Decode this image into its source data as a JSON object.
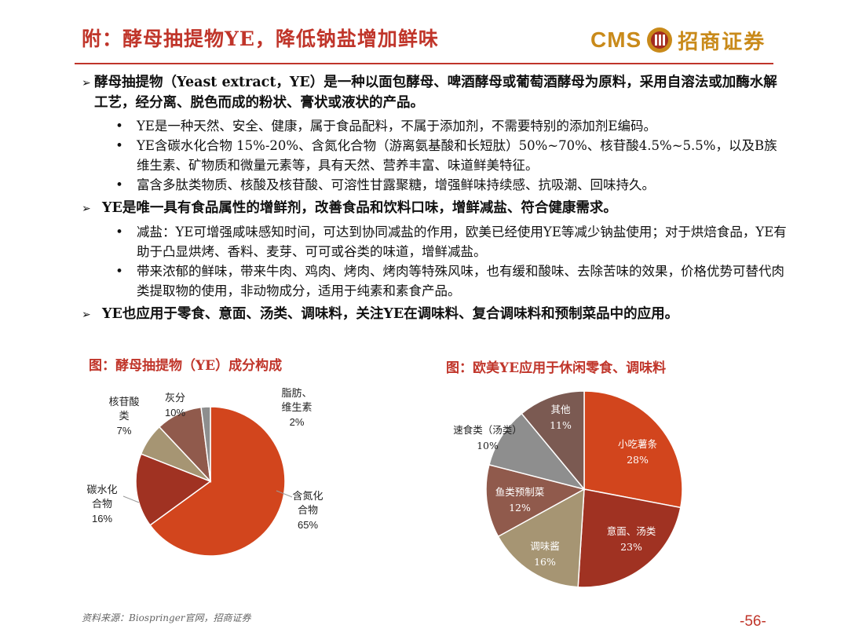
{
  "header": {
    "title": "附：酵母抽提物YE，降低钠盐增加鲜味",
    "logo_text": "CMS",
    "logo_cn": "招商证券"
  },
  "sections": [
    {
      "text": "酵母抽提物（Yeast extract，YE）是一种以面包酵母、啤酒酵母或葡萄酒酵母为原料，采用自溶法或加酶水解工艺，经分离、脱色而成的粉状、膏状或液状的产品。",
      "bullets": [
        "YE是一种天然、安全、健康，属于食品配料，不属于添加剂，不需要特别的添加剂E编码。",
        "YE含碳水化合物 15%-20%、含氮化合物（游离氨基酸和长短肽）50%~70%、核苷酸4.5%~5.5%，以及B族维生素、矿物质和微量元素等，具有天然、营养丰富、味道鲜美特征。",
        "富含多肽类物质、核酸及核苷酸、可溶性甘露聚糖，增强鲜味持续感、抗吸潮、回味持久。"
      ]
    },
    {
      "text": "YE是唯一具有食品属性的增鲜剂，改善食品和饮料口味，增鲜减盐、符合健康需求。",
      "bullets": [
        "减盐：YE可增强咸味感知时间，可达到协同减盐的作用，欧美已经使用YE等减少钠盐使用；对于烘焙食品，YE有助于凸显烘烤、香料、麦芽、可可或谷类的味道，增鲜减盐。",
        "带来浓郁的鲜味，带来牛肉、鸡肉、烤肉、烤肉等特殊风味，也有缓和酸味、去除苦味的效果，价格优势可替代肉类提取物的使用，非动物成分，适用于纯素和素食产品。"
      ]
    },
    {
      "text": "YE也应用于零食、意面、汤类、调味料，关注YE在调味料、复合调味料和预制菜品中的应用。",
      "bullets": []
    }
  ],
  "figures": {
    "left_title": "图：酵母抽提物（YE）成分构成",
    "right_title": "图：欧美YE应用于休闲零食、调味料"
  },
  "chart_data": [
    {
      "type": "pie",
      "title": "图：酵母抽提物（YE）成分构成",
      "labels": [
        "含氮化合物",
        "碳水化合物",
        "核苷酸类",
        "灰分",
        "脂肪、维生素"
      ],
      "values": [
        65,
        16,
        7,
        10,
        2
      ],
      "display": [
        "65%",
        "16%",
        "7%",
        "10%",
        "2%"
      ],
      "colors": [
        "#d2451d",
        "#a03222",
        "#a69573",
        "#905a4c",
        "#8e8e8e"
      ]
    },
    {
      "type": "pie",
      "title": "图：欧美YE应用于休闲零食、调味料",
      "labels": [
        "小吃薯条",
        "意面、汤类",
        "调味酱",
        "鱼类预制菜",
        "速食类（汤类）",
        "其他"
      ],
      "values": [
        28,
        23,
        16,
        12,
        10,
        11
      ],
      "display": [
        "28%",
        "23%",
        "16%",
        "12%",
        "10%",
        "11%"
      ],
      "colors": [
        "#d2451d",
        "#a03222",
        "#a69573",
        "#905a4c",
        "#8e8e8e",
        "#7b5a52"
      ]
    }
  ],
  "left_labels": {
    "nucleotide_l1": "核苷酸",
    "nucleotide_l2": "类",
    "nucleotide_v": "7%",
    "ash_l1": "灰分",
    "ash_v": "10%",
    "fat_l1": "脂肪、",
    "fat_l2": "维生素",
    "fat_v": "2%",
    "carb_l1": "碳水化",
    "carb_l2": "合物",
    "carb_v": "16%",
    "nitro_l1": "含氮化",
    "nitro_l2": "合物",
    "nitro_v": "65%"
  },
  "right_labels": {
    "other": "其他",
    "other_v": "11%",
    "fast": "速食类（汤类）",
    "fast_v": "10%",
    "snack": "小吃薯条",
    "snack_v": "28%",
    "fish": "鱼类预制菜",
    "fish_v": "12%",
    "pasta": "意面、汤类",
    "pasta_v": "23%",
    "sauce": "调味酱",
    "sauce_v": "16%"
  },
  "footer": {
    "source": "资料来源：Biospringer官网，招商证券",
    "page": "-56-"
  },
  "colors": {
    "accent": "#c0352a",
    "logo": "#c98a1a"
  }
}
